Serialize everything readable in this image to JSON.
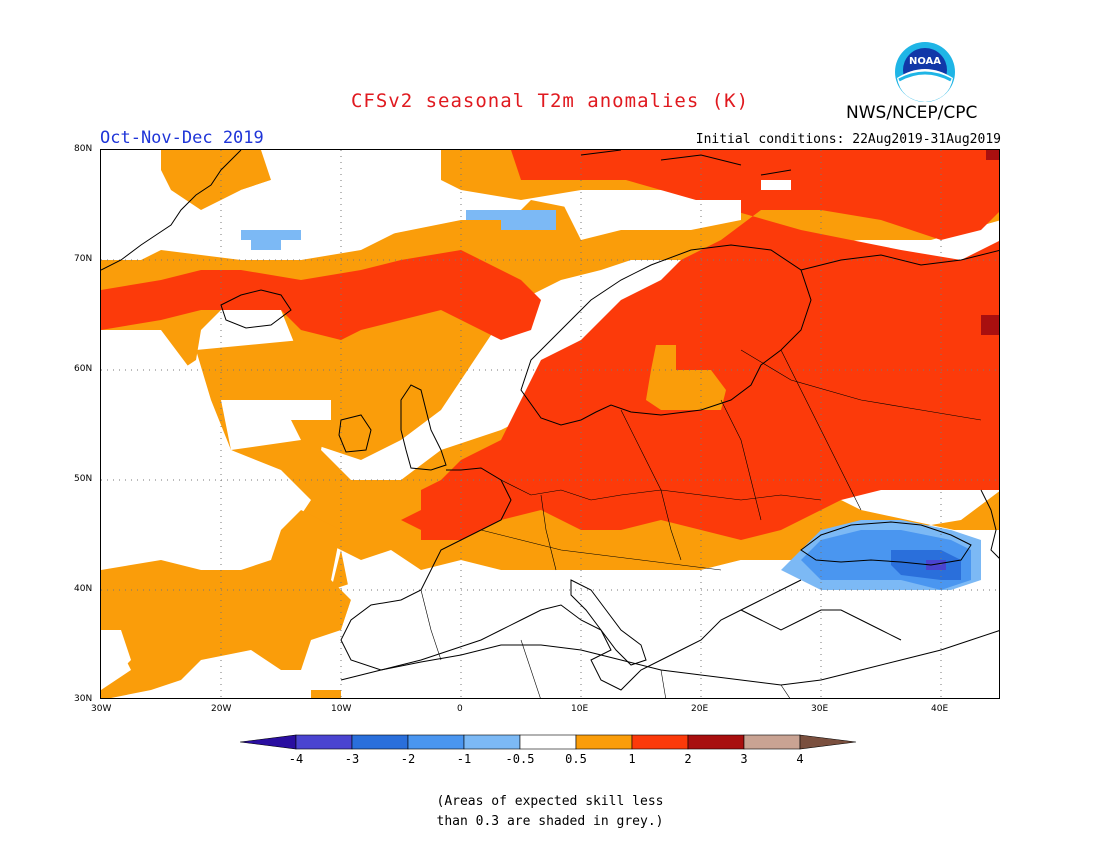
{
  "title": "CFSv2 seasonal T2m anomalies (K)",
  "agency": "NWS/NCEP/CPC",
  "logo_text": "NOAA",
  "period": "Oct-Nov-Dec 2019",
  "initial_conditions": "Initial conditions: 22Aug2019-31Aug2019",
  "note_line1": "(Areas of expected skill less",
  "note_line2": "than 0.3 are shaded in grey.)",
  "map": {
    "lon_range": [
      -30,
      45
    ],
    "lat_range": [
      30,
      80
    ],
    "lat_labels": [
      "80N",
      "70N",
      "60N",
      "50N",
      "40N",
      "30N"
    ],
    "lon_labels": [
      "30W",
      "20W",
      "10W",
      "0",
      "10E",
      "20E",
      "30E",
      "40E"
    ]
  },
  "colorbar": {
    "labels": [
      "-4",
      "-3",
      "-2",
      "-1",
      "-0.5",
      "0.5",
      "1",
      "2",
      "3",
      "4"
    ],
    "colors": [
      "#2a0ea0",
      "#4a44d0",
      "#2a6fdb",
      "#4a96f0",
      "#7cb9f5",
      "#ffffff",
      "#fa9d0a",
      "#fc3a0a",
      "#a80f0f",
      "#c9a393",
      "#7a4f3e"
    ]
  },
  "anomaly_colors": {
    "warm_0.5_1": "#fa9d0a",
    "warm_1_2": "#fc3a0a",
    "warm_2_3": "#a80f0f",
    "cool_-0.5_-1": "#7cb9f5",
    "cool_-1_-2": "#4a96f0",
    "cool_-2_-3": "#2a6fdb",
    "cool_-3_-4": "#4a44d0"
  }
}
